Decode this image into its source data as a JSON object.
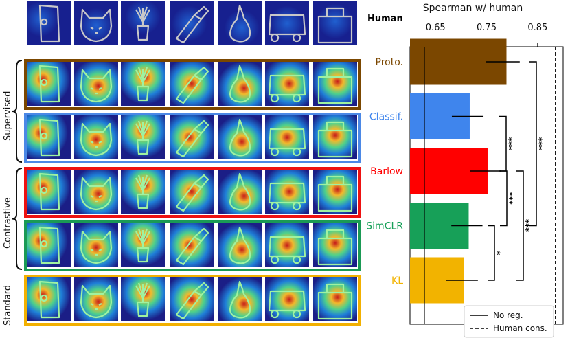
{
  "figure": {
    "human_row_label": "Human",
    "sketch_names": [
      "door-sketch",
      "cat-sketch",
      "plant-sketch",
      "flashlight-sketch",
      "pear-sketch",
      "bus-sketch",
      "purse-sketch"
    ],
    "group_labels": [
      "Supervised",
      "Contrastive",
      "Standard"
    ],
    "row_box_colors": [
      "#7b4700",
      "#4b88e6",
      "#ee1111",
      "#1a9a55",
      "#f2b000"
    ]
  },
  "chart_data": {
    "type": "bar",
    "orientation": "horizontal",
    "title": "Spearman w/ human",
    "categories": [
      "Proto.",
      "Classif.",
      "Barlow",
      "SimCLR",
      "KL"
    ],
    "category_colors": [
      "#7b4700",
      "#3f85ed",
      "#ff0000",
      "#17a058",
      "#f2b300"
    ],
    "values": [
      0.789,
      0.717,
      0.752,
      0.715,
      0.706
    ],
    "error_low": [
      0.749,
      0.682,
      0.718,
      0.681,
      0.67
    ],
    "error_high": [
      0.815,
      0.744,
      0.778,
      0.742,
      0.733
    ],
    "xlim": [
      0.6,
      0.9
    ],
    "xticks": [
      0.65,
      0.75,
      0.85
    ],
    "xtick_labels": [
      "0.65",
      "0.75",
      "0.85"
    ],
    "reference_lines": [
      {
        "name": "No reg.",
        "value": 0.628,
        "style": "solid"
      },
      {
        "name": "Human cons.",
        "value": 0.885,
        "style": "dashed"
      }
    ],
    "legend_position": "bottom-right",
    "significance": [
      {
        "from": "SimCLR",
        "to": "KL",
        "label": "*"
      },
      {
        "from": "Classif.",
        "to": "Barlow",
        "label": "***"
      },
      {
        "from": "Barlow",
        "to": "KL",
        "label": "***"
      },
      {
        "from": "Barlow",
        "to": "SimCLR",
        "label": "***"
      },
      {
        "from": "Proto.",
        "to": "SimCLR",
        "label": "***"
      }
    ]
  }
}
